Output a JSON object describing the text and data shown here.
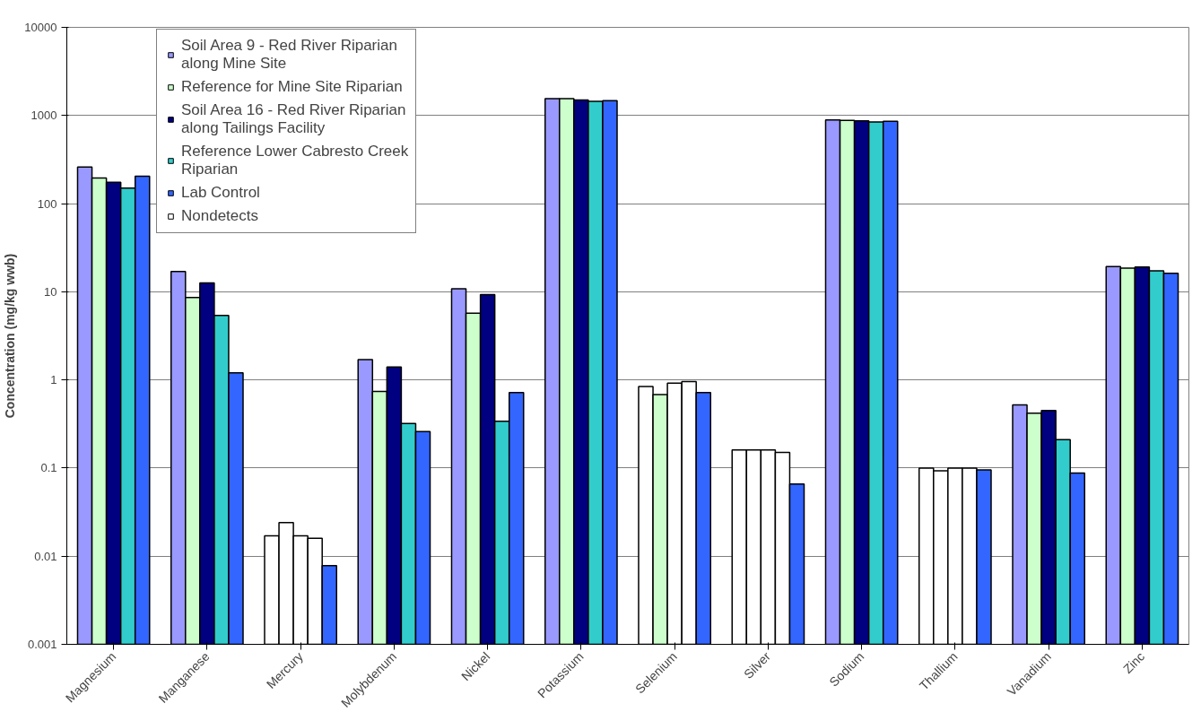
{
  "chart_data": {
    "type": "bar",
    "ylabel": "Concentration (mg/kg wwb)",
    "categories": [
      "Magnesium",
      "Manganese",
      "Mercury",
      "Molybdenum",
      "Nickel",
      "Potassium",
      "Selenium",
      "Silver",
      "Sodium",
      "Thallium",
      "Vanadium",
      "Zinc"
    ],
    "series": [
      {
        "name": "Soil Area 9 - Red River Riparian along Mine Site",
        "color": "#9999ff",
        "colors": [
          "#9999ff",
          "#9999ff",
          "#ffffff",
          "#9999ff",
          "#9999ff",
          "#9999ff",
          "#ffffff",
          "#ffffff",
          "#9999ff",
          "#ffffff",
          "#9999ff",
          "#9999ff"
        ],
        "values": [
          260,
          17,
          0.017,
          1.7,
          10.8,
          1550,
          0.84,
          0.16,
          890,
          0.1,
          0.52,
          19.3
        ]
      },
      {
        "name": "Reference for Mine Site Riparian",
        "color": "#ccffcc",
        "colors": [
          "#ccffcc",
          "#ccffcc",
          "#ffffff",
          "#ccffcc",
          "#ccffcc",
          "#ccffcc",
          "#ccffcc",
          "#ffffff",
          "#ccffcc",
          "#ffffff",
          "#ccffcc",
          "#ccffcc"
        ],
        "values": [
          195,
          8.6,
          0.024,
          0.74,
          5.7,
          1550,
          0.68,
          0.16,
          880,
          0.093,
          0.42,
          18.5
        ]
      },
      {
        "name": "Soil Area 16 - Red River Riparian along Tailings Facility",
        "color": "#000080",
        "colors": [
          "#000080",
          "#000080",
          "#ffffff",
          "#000080",
          "#000080",
          "#000080",
          "#ffffff",
          "#ffffff",
          "#000080",
          "#ffffff",
          "#000080",
          "#000080"
        ],
        "values": [
          175,
          12.6,
          0.017,
          1.4,
          9.3,
          1500,
          0.92,
          0.16,
          870,
          0.1,
          0.45,
          19.1
        ]
      },
      {
        "name": "Reference Lower Cabresto Creek Riparian",
        "color": "#33cccc",
        "colors": [
          "#33cccc",
          "#33cccc",
          "#ffffff",
          "#33cccc",
          "#33cccc",
          "#33cccc",
          "#ffffff",
          "#ffffff",
          "#33cccc",
          "#ffffff",
          "#33cccc",
          "#33cccc"
        ],
        "values": [
          150,
          5.4,
          0.016,
          0.32,
          0.34,
          1450,
          0.96,
          0.15,
          845,
          0.1,
          0.21,
          17.3
        ]
      },
      {
        "name": "Lab Control",
        "color": "#3366ff",
        "values": [
          205,
          1.2,
          0.0078,
          0.26,
          0.72,
          1470,
          0.72,
          0.066,
          860,
          0.095,
          0.088,
          16.2
        ]
      },
      {
        "name": "Nondetects",
        "color": "#ffffff",
        "values": [
          null,
          null,
          null,
          null,
          null,
          null,
          null,
          null,
          null,
          null,
          null,
          null
        ]
      }
    ],
    "log": "y",
    "ylim": [
      0.001,
      10000
    ],
    "yticks": [
      0.001,
      0.01,
      0.1,
      1,
      10,
      100,
      1000,
      10000
    ],
    "grid": "y",
    "legend": "top left"
  }
}
